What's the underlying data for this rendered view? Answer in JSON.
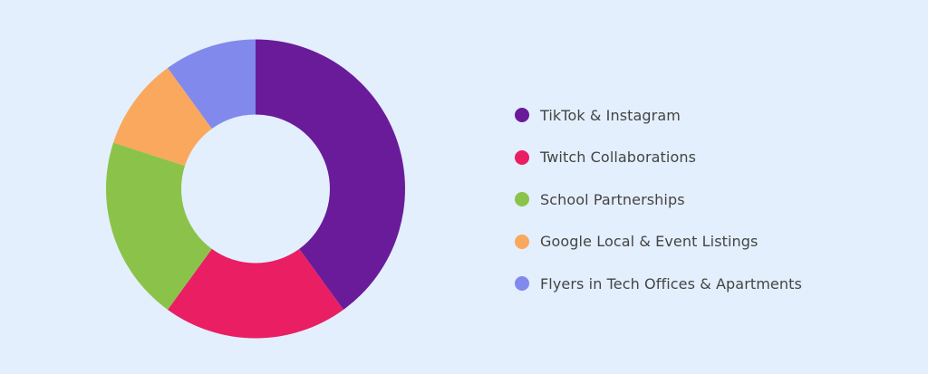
{
  "chart_data": {
    "type": "pie",
    "donut": true,
    "title": "",
    "legend_position": "right",
    "slices": [
      {
        "label": "TikTok & Instagram",
        "value": 40,
        "color": "#6a1b9a"
      },
      {
        "label": "Twitch Collaborations",
        "value": 20,
        "color": "#e91e63"
      },
      {
        "label": "School Partnerships",
        "value": 20,
        "color": "#8bc34a"
      },
      {
        "label": "Google Local & Event Listings",
        "value": 10,
        "color": "#f9a85d"
      },
      {
        "label": "Flyers in Tech Offices & Apartments",
        "value": 10,
        "color": "#8289ec"
      }
    ]
  }
}
